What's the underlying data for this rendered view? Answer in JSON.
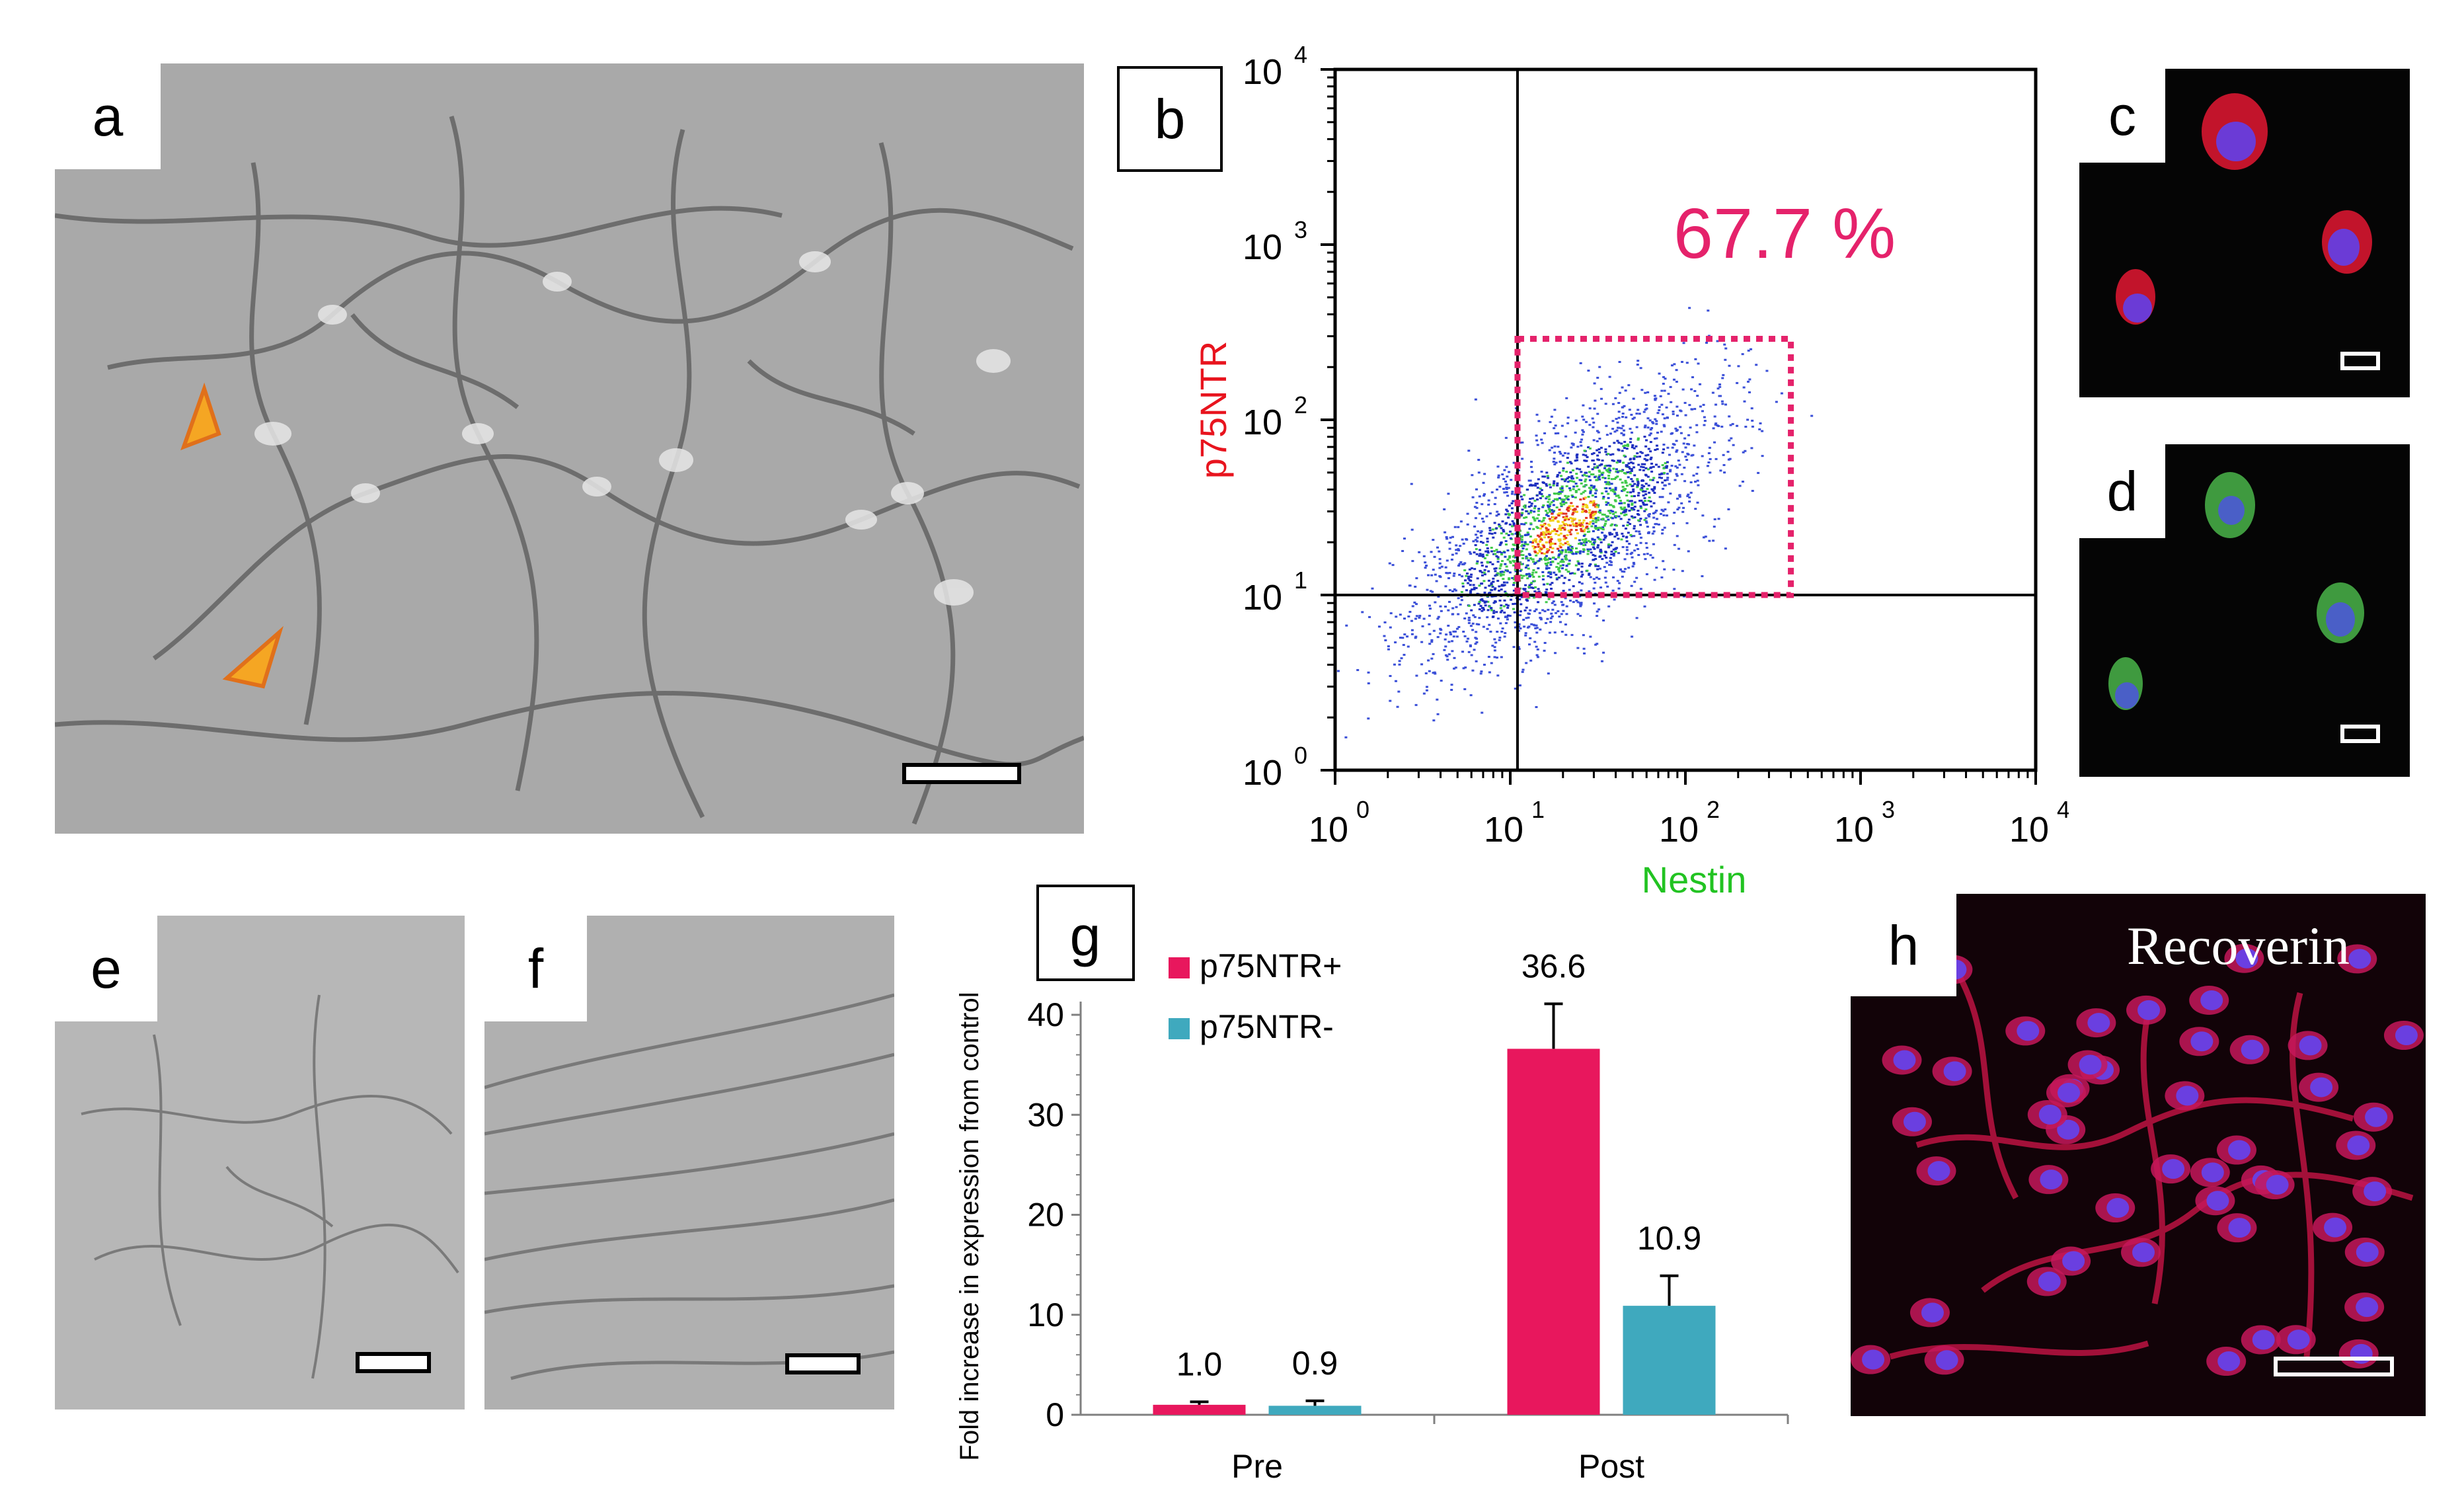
{
  "panels": {
    "a": {
      "label": "a"
    },
    "b": {
      "label": "b"
    },
    "c": {
      "label": "c"
    },
    "d": {
      "label": "d"
    },
    "e": {
      "label": "e"
    },
    "f": {
      "label": "f"
    },
    "g": {
      "label": "g"
    },
    "h": {
      "label": "h",
      "stain_label": "Recoverin"
    }
  },
  "colors": {
    "pink": "#e8175d",
    "teal": "#3fa9be",
    "gate": "#e5226b",
    "arrow": "#f5a623",
    "nestin_label": "#22c322",
    "p75_label": "#e8141e"
  },
  "chart_data": [
    {
      "type": "scatter",
      "panel": "b",
      "xlabel": "Nestin",
      "ylabel": "p75NTR",
      "x_scale": "log",
      "y_scale": "log",
      "xlim": [
        1,
        10000
      ],
      "ylim": [
        1,
        10000
      ],
      "x_ticks": [
        {
          "base": "10",
          "exp": "0"
        },
        {
          "base": "10",
          "exp": "1"
        },
        {
          "base": "10",
          "exp": "2"
        },
        {
          "base": "10",
          "exp": "3"
        },
        {
          "base": "10",
          "exp": "4"
        }
      ],
      "y_ticks": [
        {
          "base": "10",
          "exp": "0"
        },
        {
          "base": "10",
          "exp": "1"
        },
        {
          "base": "10",
          "exp": "2"
        },
        {
          "base": "10",
          "exp": "3"
        },
        {
          "base": "10",
          "exp": "4"
        }
      ],
      "quadrant_lines": {
        "x": 11,
        "y": 10
      },
      "gate": {
        "x_range": [
          11,
          400
        ],
        "y_range": [
          10,
          290
        ],
        "percentage_label": "67.7 %"
      },
      "population": {
        "center_x": 20,
        "center_y": 25
      }
    },
    {
      "type": "bar",
      "panel": "g",
      "categories": [
        "Pre",
        "Post"
      ],
      "series": [
        {
          "name": "p75NTR+",
          "values": [
            1.0,
            36.6
          ],
          "errors": [
            0.3,
            4.5
          ],
          "labels": [
            "1.0",
            "36.6"
          ]
        },
        {
          "name": "p75NTR-",
          "values": [
            0.9,
            10.9
          ],
          "errors": [
            0.5,
            3.0
          ],
          "labels": [
            "0.9",
            "10.9"
          ]
        }
      ],
      "ylabel": "Fold increase in expression from control",
      "ylim": [
        0,
        40
      ],
      "y_ticks": [
        "0",
        "10",
        "20",
        "30",
        "40"
      ]
    }
  ]
}
